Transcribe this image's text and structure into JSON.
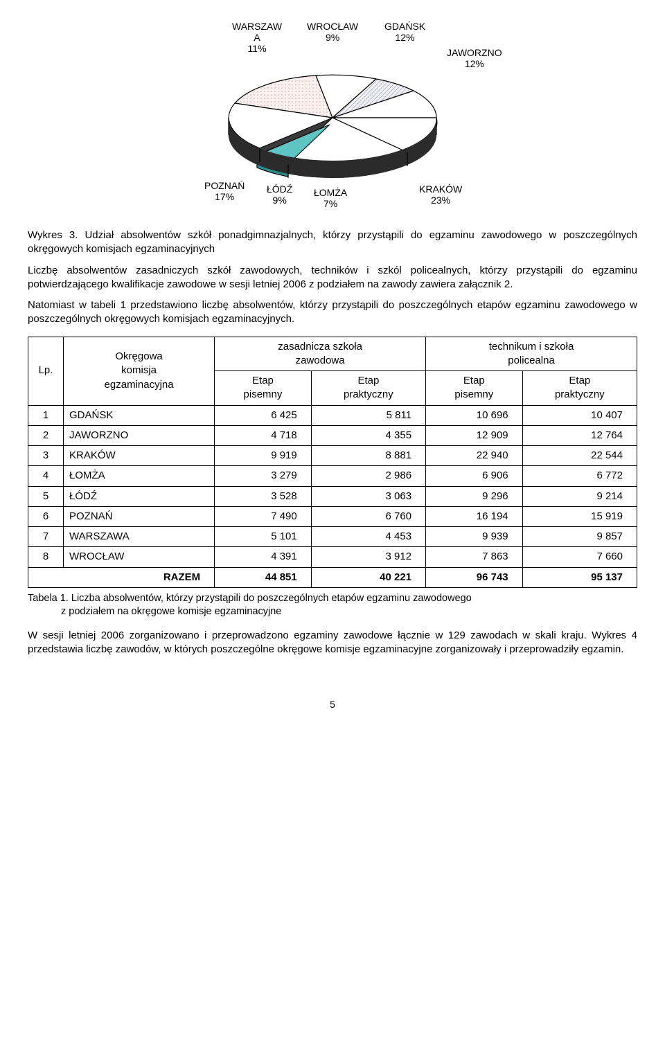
{
  "pie_chart": {
    "type": "pie-3d",
    "slices": [
      {
        "label": "WARSZAW\nA",
        "value": 11,
        "color": "#ffffff",
        "pattern": "none"
      },
      {
        "label": "WROCŁAW",
        "value": 9,
        "color": "#e8e8f0",
        "pattern": "diag"
      },
      {
        "label": "GDAŃSK",
        "value": 12,
        "color": "#ffffff",
        "pattern": "none"
      },
      {
        "label": "JAWORZNO",
        "value": 12,
        "color": "#ffffff",
        "pattern": "none"
      },
      {
        "label": "KRAKÓW",
        "value": 23,
        "color": "#ffffff",
        "pattern": "none"
      },
      {
        "label": "ŁOMŻA",
        "value": 7,
        "color": "#5fc4c4",
        "pattern": "none",
        "exploded": true
      },
      {
        "label": "ŁÓDŹ",
        "value": 9,
        "color": "#ffffff",
        "pattern": "none"
      },
      {
        "label": "POZNAŃ",
        "value": 17,
        "color": "#f4e6e6",
        "pattern": "dots"
      }
    ],
    "edge_color": "#000000",
    "side_color": "#3a3a3a",
    "background_color": "#ffffff",
    "label_fontsize": 14,
    "labels": {
      "warszawa": "WARSZAW\nA\n11%",
      "wroclaw": "WROCŁAW\n9%",
      "gdansk": "GDAŃSK\n12%",
      "jaworzno": "JAWORZNO\n12%",
      "krakow": "KRAKÓW\n23%",
      "lomza": "ŁOMŻA\n7%",
      "lodz": "ŁÓDŹ\n9%",
      "poznan": "POZNAŃ\n17%"
    }
  },
  "wykres3_caption": "Wykres 3. Udział absolwentów szkół ponadgimnazjalnych, którzy przystąpili do egzaminu zawodowego w poszczególnych okręgowych komisjach egzaminacyjnych",
  "para1": "Liczbę absolwentów zasadniczych szkół zawodowych, techników i szkól policealnych, którzy przystąpili do egzaminu potwierdzającego kwalifikacje zawodowe w sesji letniej 2006 z podziałem na zawody zawiera załącznik 2.",
  "para2": "Natomiast w tabeli 1 przedstawiono liczbę absolwentów, którzy przystąpili do poszczególnych etapów egzaminu zawodowego w poszczególnych okręgowych komisjach egzaminacyjnych.",
  "table": {
    "headers": {
      "lp": "Lp.",
      "komisja": "Okręgowa\nkomisja\negzaminacyjna",
      "zsz": "zasadnicza szkoła\nzawodowa",
      "tisp": "technikum i szkoła\npolicealna",
      "etap_pisemny": "Etap\npisemny",
      "etap_praktyczny": "Etap\npraktyczny"
    },
    "columns_align": [
      "center",
      "left",
      "right",
      "right",
      "right",
      "right"
    ],
    "rows": [
      {
        "lp": "1",
        "name": "GDAŃSK",
        "zsz_p": "6 425",
        "zsz_pr": "5 811",
        "t_p": "10 696",
        "t_pr": "10 407"
      },
      {
        "lp": "2",
        "name": "JAWORZNO",
        "zsz_p": "4 718",
        "zsz_pr": "4 355",
        "t_p": "12 909",
        "t_pr": "12 764"
      },
      {
        "lp": "3",
        "name": "KRAKÓW",
        "zsz_p": "9 919",
        "zsz_pr": "8 881",
        "t_p": "22 940",
        "t_pr": "22 544"
      },
      {
        "lp": "4",
        "name": "ŁOMŻA",
        "zsz_p": "3 279",
        "zsz_pr": "2 986",
        "t_p": "6 906",
        "t_pr": "6 772"
      },
      {
        "lp": "5",
        "name": "ŁÓDŹ",
        "zsz_p": "3 528",
        "zsz_pr": "3 063",
        "t_p": "9 296",
        "t_pr": "9 214"
      },
      {
        "lp": "6",
        "name": "POZNAŃ",
        "zsz_p": "7 490",
        "zsz_pr": "6 760",
        "t_p": "16 194",
        "t_pr": "15 919"
      },
      {
        "lp": "7",
        "name": "WARSZAWA",
        "zsz_p": "5 101",
        "zsz_pr": "4 453",
        "t_p": "9 939",
        "t_pr": "9 857"
      },
      {
        "lp": "8",
        "name": "WROCŁAW",
        "zsz_p": "4 391",
        "zsz_pr": "3 912",
        "t_p": "7 863",
        "t_pr": "7 660"
      }
    ],
    "total": {
      "label": "RAZEM",
      "zsz_p": "44 851",
      "zsz_pr": "40 221",
      "t_p": "96 743",
      "t_pr": "95 137"
    }
  },
  "tabela1_caption_line1": "Tabela 1. Liczba absolwentów, którzy przystąpili do poszczególnych etapów egzaminu zawodowego",
  "tabela1_caption_line2": "z podziałem na okręgowe komisje egzaminacyjne",
  "para3": "W sesji letniej 2006 zorganizowano i przeprowadzono egzaminy zawodowe łącznie w 129 zawodach w skali kraju. Wykres 4 przedstawia liczbę zawodów, w których poszczególne okręgowe komisje egzaminacyjne zorganizowały i przeprowadziły egzamin.",
  "page_number": "5"
}
